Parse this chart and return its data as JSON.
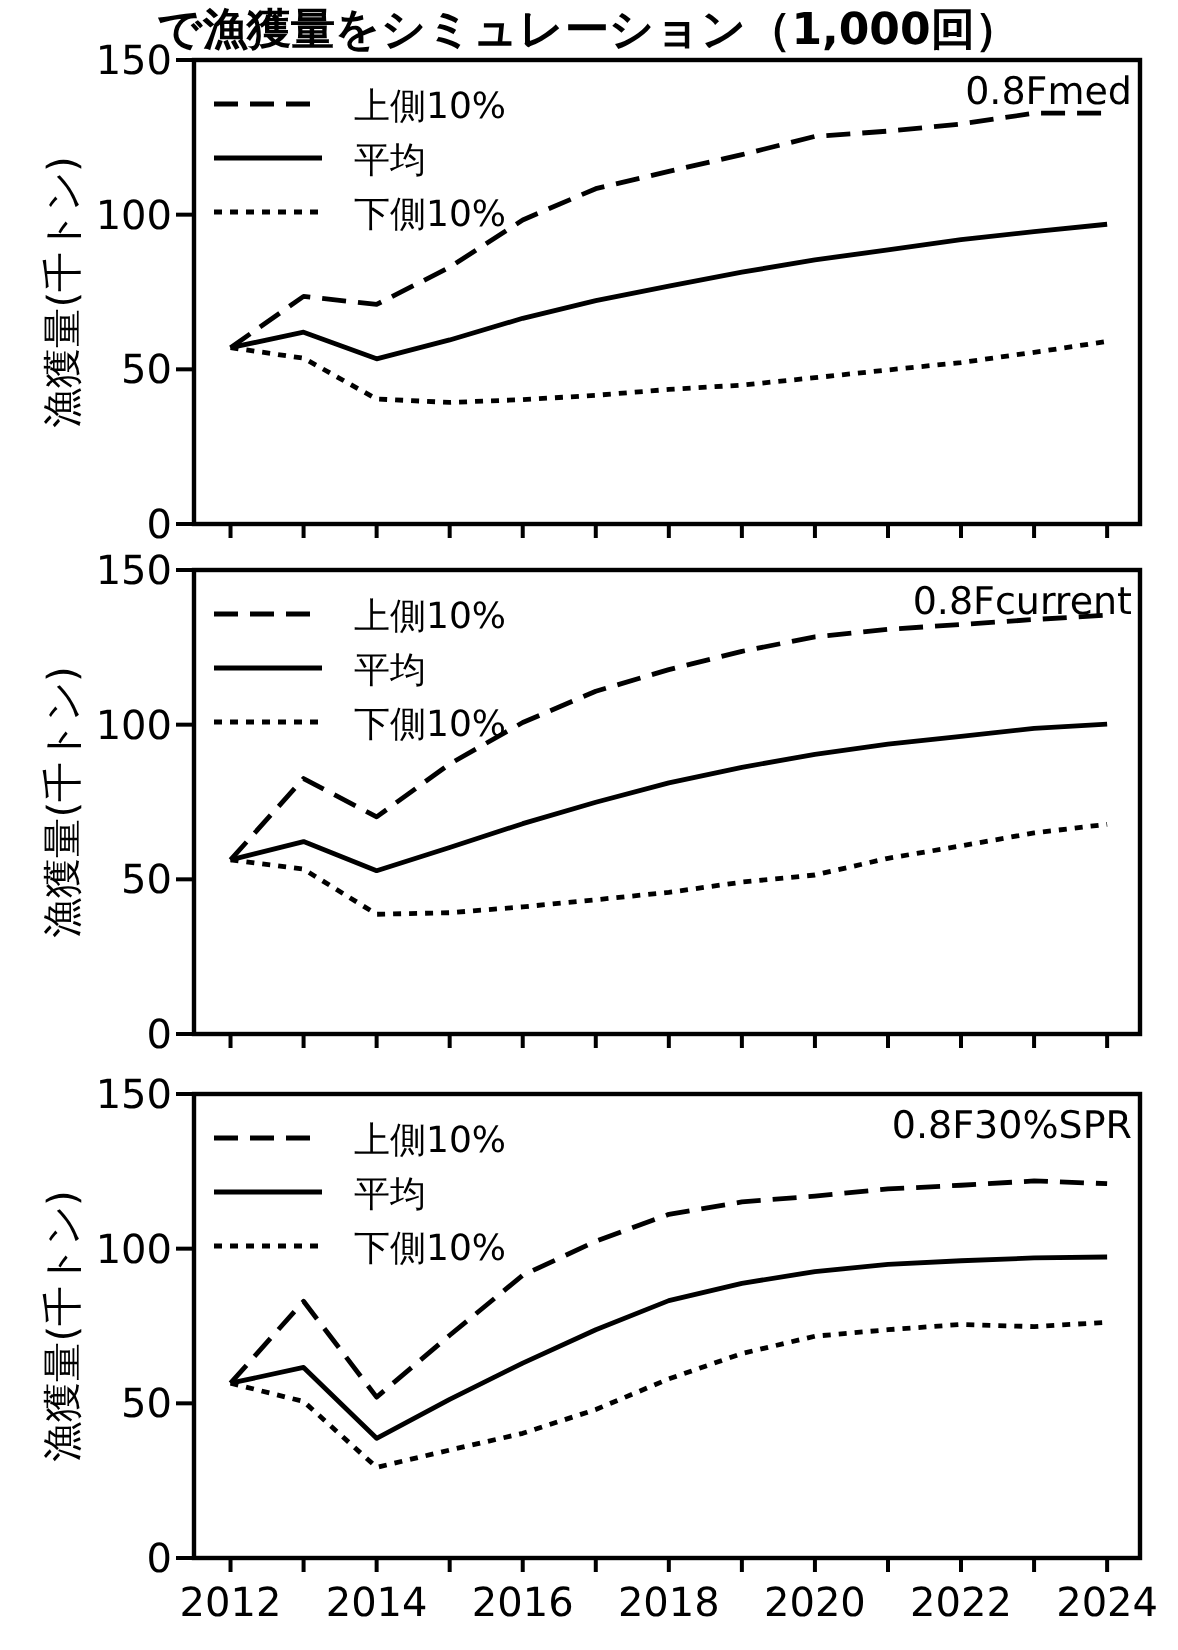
{
  "chart_data": [
    {
      "type": "line",
      "title": "で漁獲量をシミュレーション（1,000回）",
      "ylabel": "漁獲量(千トン)",
      "annotations": [
        "0.8Fmed"
      ],
      "legend": "top left",
      "tick_labels": "y",
      "x": [
        2012,
        2013,
        2014,
        2015,
        2016,
        2017,
        2018,
        2019,
        2020,
        2021,
        2022,
        2023,
        2024
      ],
      "xlim": [
        2011.5,
        2024.45
      ],
      "ylim": [
        0,
        150
      ],
      "yticks": [
        0,
        50,
        100,
        150
      ],
      "xticks": [
        2012,
        {
          "value": 2013,
          "label": null
        },
        2014,
        {
          "value": 2015,
          "label": null
        },
        2016,
        {
          "value": 2017,
          "label": null
        },
        2018,
        {
          "value": 2019,
          "label": null
        },
        2020,
        {
          "value": 2021,
          "label": null
        },
        2022,
        {
          "value": 2023,
          "label": null
        },
        2024
      ],
      "series": [
        {
          "name": "上側10%",
          "color": "#000000",
          "line_style": "dashed",
          "values": [
            57,
            73.6,
            71,
            83,
            98.3,
            108.4,
            114,
            119.4,
            125.3,
            127,
            129.3,
            132.8,
            132.8
          ]
        },
        {
          "name": "平均",
          "color": "#000000",
          "line_style": "solid",
          "values": [
            57,
            62,
            53.4,
            59.5,
            66.5,
            72.2,
            76.9,
            81.4,
            85.4,
            88.6,
            91.9,
            94.5,
            96.9
          ]
        },
        {
          "name": "下側10%",
          "color": "#000000",
          "line_style": "dotted",
          "values": [
            57,
            53.6,
            40.4,
            39.3,
            40.2,
            41.6,
            43.5,
            44.9,
            47.3,
            49.8,
            52.2,
            55.5,
            59
          ]
        }
      ]
    },
    {
      "type": "line",
      "ylabel": "漁獲量(千トン)",
      "annotations": [
        "0.8Fcurrent"
      ],
      "legend": "top left",
      "tick_labels": "y",
      "x": [
        2012,
        2013,
        2014,
        2015,
        2016,
        2017,
        2018,
        2019,
        2020,
        2021,
        2022,
        2023,
        2024
      ],
      "xlim": [
        2011.5,
        2024.45
      ],
      "ylim": [
        0,
        150
      ],
      "yticks": [
        0,
        50,
        100,
        150
      ],
      "xticks": [
        2012,
        {
          "value": 2013,
          "label": null
        },
        2014,
        {
          "value": 2015,
          "label": null
        },
        2016,
        {
          "value": 2017,
          "label": null
        },
        2018,
        {
          "value": 2019,
          "label": null
        },
        2020,
        {
          "value": 2021,
          "label": null
        },
        2022,
        {
          "value": 2023,
          "label": null
        },
        2024
      ],
      "series": [
        {
          "name": "上側10%",
          "color": "#000000",
          "line_style": "dashed",
          "values": [
            56.3,
            82.6,
            70.2,
            87.3,
            100.7,
            110.8,
            117.8,
            123.7,
            128.4,
            130.8,
            132.4,
            134,
            135.4
          ]
        },
        {
          "name": "平均",
          "color": "#000000",
          "line_style": "solid",
          "values": [
            56.3,
            62.2,
            52.8,
            60.3,
            68,
            74.9,
            81.2,
            86.2,
            90.4,
            93.7,
            96.2,
            98.8,
            100.2
          ]
        },
        {
          "name": "下側10%",
          "color": "#000000",
          "line_style": "dotted",
          "values": [
            56.3,
            53.3,
            38.7,
            39.2,
            41.1,
            43.4,
            45.8,
            49.1,
            51.4,
            56.8,
            60.8,
            65,
            67.8
          ]
        }
      ]
    },
    {
      "type": "line",
      "ylabel": "漁獲量(千トン)",
      "annotations": [
        "0.8F30%SPR"
      ],
      "legend": "top left",
      "x": [
        2012,
        2013,
        2014,
        2015,
        2016,
        2017,
        2018,
        2019,
        2020,
        2021,
        2022,
        2023,
        2024
      ],
      "xlim": [
        2011.5,
        2024.45
      ],
      "ylim": [
        0,
        150
      ],
      "yticks": [
        0,
        50,
        100,
        150
      ],
      "xticks": [
        2012,
        {
          "value": 2013,
          "label": null
        },
        2014,
        {
          "value": 2015,
          "label": null
        },
        2016,
        {
          "value": 2017,
          "label": null
        },
        2018,
        {
          "value": 2019,
          "label": null
        },
        2020,
        {
          "value": 2021,
          "label": null
        },
        2022,
        {
          "value": 2023,
          "label": null
        },
        2024
      ],
      "series": [
        {
          "name": "上側10%",
          "color": "#000000",
          "line_style": "dashed",
          "values": [
            56.5,
            83,
            52,
            72,
            91.4,
            102.4,
            111.1,
            115.1,
            117,
            119.3,
            120.5,
            121.9,
            121
          ]
        },
        {
          "name": "平均",
          "color": "#000000",
          "line_style": "solid",
          "values": [
            56.5,
            61.6,
            38.7,
            51.3,
            63,
            73.8,
            83.2,
            88.8,
            92.6,
            94.9,
            96.1,
            97,
            97.3
          ]
        },
        {
          "name": "下側10%",
          "color": "#000000",
          "line_style": "dotted",
          "values": [
            56.5,
            50.6,
            29.3,
            34.9,
            40.3,
            48,
            57.9,
            66.1,
            71.7,
            73.8,
            75.5,
            74.8,
            76.2
          ]
        }
      ]
    }
  ]
}
